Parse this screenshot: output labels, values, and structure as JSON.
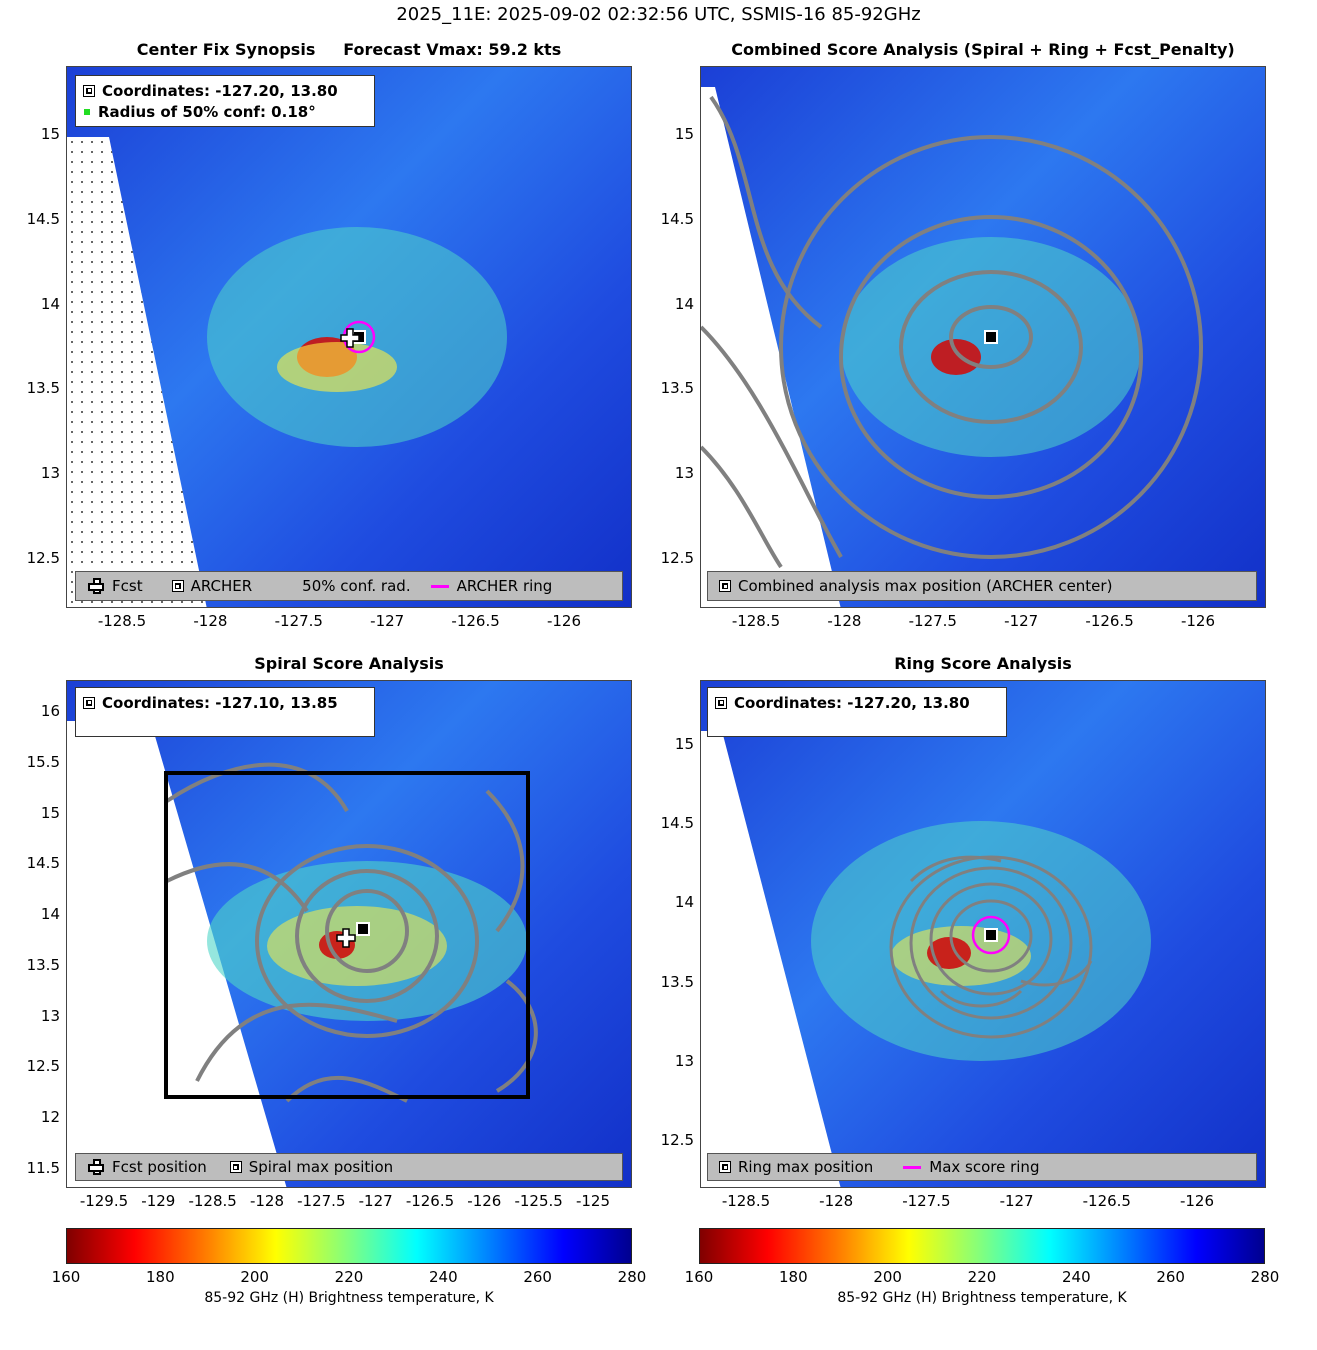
{
  "suptitle": "2025_11E: 2025-09-02 02:32:56 UTC, SSMIS-16 85-92GHz",
  "colors": {
    "ring": "#ff00ff",
    "contour": "#808080",
    "box": "#000000"
  },
  "panels": [
    {
      "id": "center-fix",
      "title": "Center Fix Synopsis     Forecast Vmax: 59.2 kts",
      "legend": {
        "coordinates": "Coordinates: -127.20, 13.80",
        "radius": "Radius of 50% conf: 0.18°"
      },
      "bottom_legend": {
        "fcst": "Fcst",
        "archer": "ARCHER",
        "conf": "50% conf. rad.",
        "ring": "ARCHER ring"
      },
      "yticks": [
        "15",
        "14.5",
        "14",
        "13.5",
        "13",
        "12.5"
      ],
      "xticks": [
        "-128.5",
        "-128",
        "-127.5",
        "-127",
        "-126.5",
        "-126"
      ]
    },
    {
      "id": "combined",
      "title": "Combined Score Analysis (Spiral + Ring + Fcst_Penalty)",
      "bottom_legend": {
        "max": "Combined analysis max position (ARCHER center)"
      },
      "yticks": [
        "15",
        "14.5",
        "14",
        "13.5",
        "13",
        "12.5"
      ],
      "xticks": [
        "-128.5",
        "-128",
        "-127.5",
        "-127",
        "-126.5",
        "-126"
      ]
    },
    {
      "id": "spiral",
      "title": "Spiral Score Analysis",
      "legend": {
        "coordinates": "Coordinates: -127.10, 13.85"
      },
      "bottom_legend": {
        "fcst": "Fcst position",
        "max": "Spiral max position"
      },
      "yticks": [
        "16",
        "15.5",
        "15",
        "14.5",
        "14",
        "13.5",
        "13",
        "12.5",
        "12",
        "11.5"
      ],
      "xticks": [
        "-129.5",
        "-129",
        "-128.5",
        "-128",
        "-127.5",
        "-127",
        "-126.5",
        "-126",
        "-125.5",
        "-125"
      ]
    },
    {
      "id": "ring",
      "title": "Ring Score Analysis",
      "legend": {
        "coordinates": "Coordinates: -127.20, 13.80"
      },
      "bottom_legend": {
        "max": "Ring max position",
        "ring": "Max score ring"
      },
      "yticks": [
        "15",
        "14.5",
        "14",
        "13.5",
        "13",
        "12.5"
      ],
      "xticks": [
        "-128.5",
        "-128",
        "-127.5",
        "-127",
        "-126.5",
        "-126"
      ]
    }
  ],
  "colorbar": {
    "ticks": [
      "160",
      "180",
      "200",
      "220",
      "240",
      "260",
      "280"
    ],
    "label": "85-92 GHz (H) Brightness temperature, K"
  },
  "chart_data": [
    {
      "type": "heatmap",
      "title": "Center Fix Synopsis",
      "subtitle": "Forecast Vmax: 59.2 kts",
      "xlim": [
        -128.85,
        -125.6
      ],
      "ylim": [
        12.2,
        15.4
      ],
      "center": {
        "lon": -127.2,
        "lat": 13.8
      },
      "fcst": {
        "lon": -127.28,
        "lat": 13.8
      },
      "radius_50_conf_deg": 0.18
    },
    {
      "type": "heatmap",
      "title": "Combined Score Analysis (Spiral + Ring + Fcst_Penalty)",
      "xlim": [
        -128.85,
        -125.6
      ],
      "ylim": [
        12.2,
        15.4
      ],
      "center": {
        "lon": -127.2,
        "lat": 13.8
      }
    },
    {
      "type": "heatmap",
      "title": "Spiral Score Analysis",
      "xlim": [
        -129.8,
        -124.7
      ],
      "ylim": [
        11.3,
        16.3
      ],
      "center": {
        "lon": -127.1,
        "lat": 13.85
      },
      "fcst": {
        "lon": -127.27,
        "lat": 13.8
      },
      "box": {
        "lon": [
          -129.0,
          -125.65
        ],
        "lat": [
          12.2,
          15.4
        ]
      }
    },
    {
      "type": "heatmap",
      "title": "Ring Score Analysis",
      "xlim": [
        -128.85,
        -125.6
      ],
      "ylim": [
        12.2,
        15.4
      ],
      "center": {
        "lon": -127.2,
        "lat": 13.8
      },
      "ring_radius_deg": 0.1
    },
    {
      "type": "colorbar",
      "range": [
        160,
        280
      ],
      "label": "85-92 GHz (H) Brightness temperature, K"
    }
  ]
}
